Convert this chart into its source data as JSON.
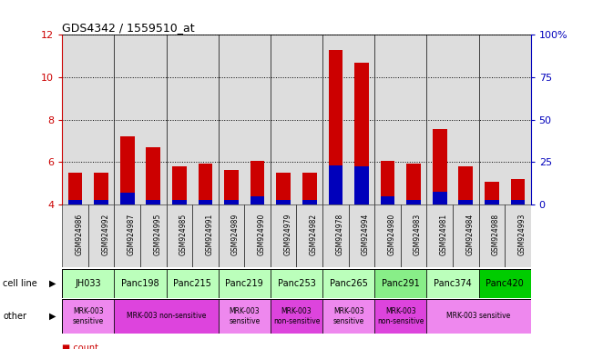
{
  "title": "GDS4342 / 1559510_at",
  "samples": [
    "GSM924986",
    "GSM924992",
    "GSM924987",
    "GSM924995",
    "GSM924985",
    "GSM924991",
    "GSM924989",
    "GSM924990",
    "GSM924979",
    "GSM924982",
    "GSM924978",
    "GSM924994",
    "GSM924980",
    "GSM924983",
    "GSM924981",
    "GSM924984",
    "GSM924988",
    "GSM924993"
  ],
  "count_values": [
    5.5,
    5.5,
    7.2,
    6.7,
    5.8,
    5.9,
    5.6,
    6.05,
    5.5,
    5.5,
    11.3,
    10.7,
    6.05,
    5.9,
    7.55,
    5.8,
    5.05,
    5.2
  ],
  "blue_top": [
    4.22,
    4.22,
    4.55,
    4.22,
    4.22,
    4.22,
    4.22,
    4.35,
    4.22,
    4.22,
    5.85,
    5.8,
    4.35,
    4.22,
    4.6,
    4.22,
    4.22,
    4.22
  ],
  "bar_bottom": 4.0,
  "ylim_left": [
    4,
    12
  ],
  "yticks_left": [
    4,
    6,
    8,
    10,
    12
  ],
  "yticks_right": [
    0,
    25,
    50,
    75,
    100
  ],
  "ytick_labels_right": [
    "0",
    "25",
    "50",
    "75",
    "100%"
  ],
  "cell_lines": [
    {
      "name": "JH033",
      "start": 0,
      "end": 1,
      "color": "#bbffbb"
    },
    {
      "name": "Panc198",
      "start": 2,
      "end": 3,
      "color": "#bbffbb"
    },
    {
      "name": "Panc215",
      "start": 4,
      "end": 5,
      "color": "#bbffbb"
    },
    {
      "name": "Panc219",
      "start": 6,
      "end": 7,
      "color": "#bbffbb"
    },
    {
      "name": "Panc253",
      "start": 8,
      "end": 9,
      "color": "#bbffbb"
    },
    {
      "name": "Panc265",
      "start": 10,
      "end": 11,
      "color": "#bbffbb"
    },
    {
      "name": "Panc291",
      "start": 12,
      "end": 13,
      "color": "#88ee88"
    },
    {
      "name": "Panc374",
      "start": 14,
      "end": 15,
      "color": "#bbffbb"
    },
    {
      "name": "Panc420",
      "start": 16,
      "end": 17,
      "color": "#00cc00"
    }
  ],
  "other_groups": [
    {
      "label": "MRK-003\nsensitive",
      "start": 0,
      "end": 1,
      "color": "#ee88ee"
    },
    {
      "label": "MRK-003 non-sensitive",
      "start": 2,
      "end": 5,
      "color": "#dd44dd"
    },
    {
      "label": "MRK-003\nsensitive",
      "start": 6,
      "end": 7,
      "color": "#ee88ee"
    },
    {
      "label": "MRK-003\nnon-sensitive",
      "start": 8,
      "end": 9,
      "color": "#dd44dd"
    },
    {
      "label": "MRK-003\nsensitive",
      "start": 10,
      "end": 11,
      "color": "#ee88ee"
    },
    {
      "label": "MRK-003\nnon-sensitive",
      "start": 12,
      "end": 13,
      "color": "#dd44dd"
    },
    {
      "label": "MRK-003 sensitive",
      "start": 14,
      "end": 17,
      "color": "#ee88ee"
    }
  ],
  "col_bg_color": "#dddddd",
  "red_color": "#cc0000",
  "blue_color": "#0000bb",
  "bar_width": 0.55,
  "left_axis_color": "#cc0000",
  "right_axis_color": "#0000bb"
}
